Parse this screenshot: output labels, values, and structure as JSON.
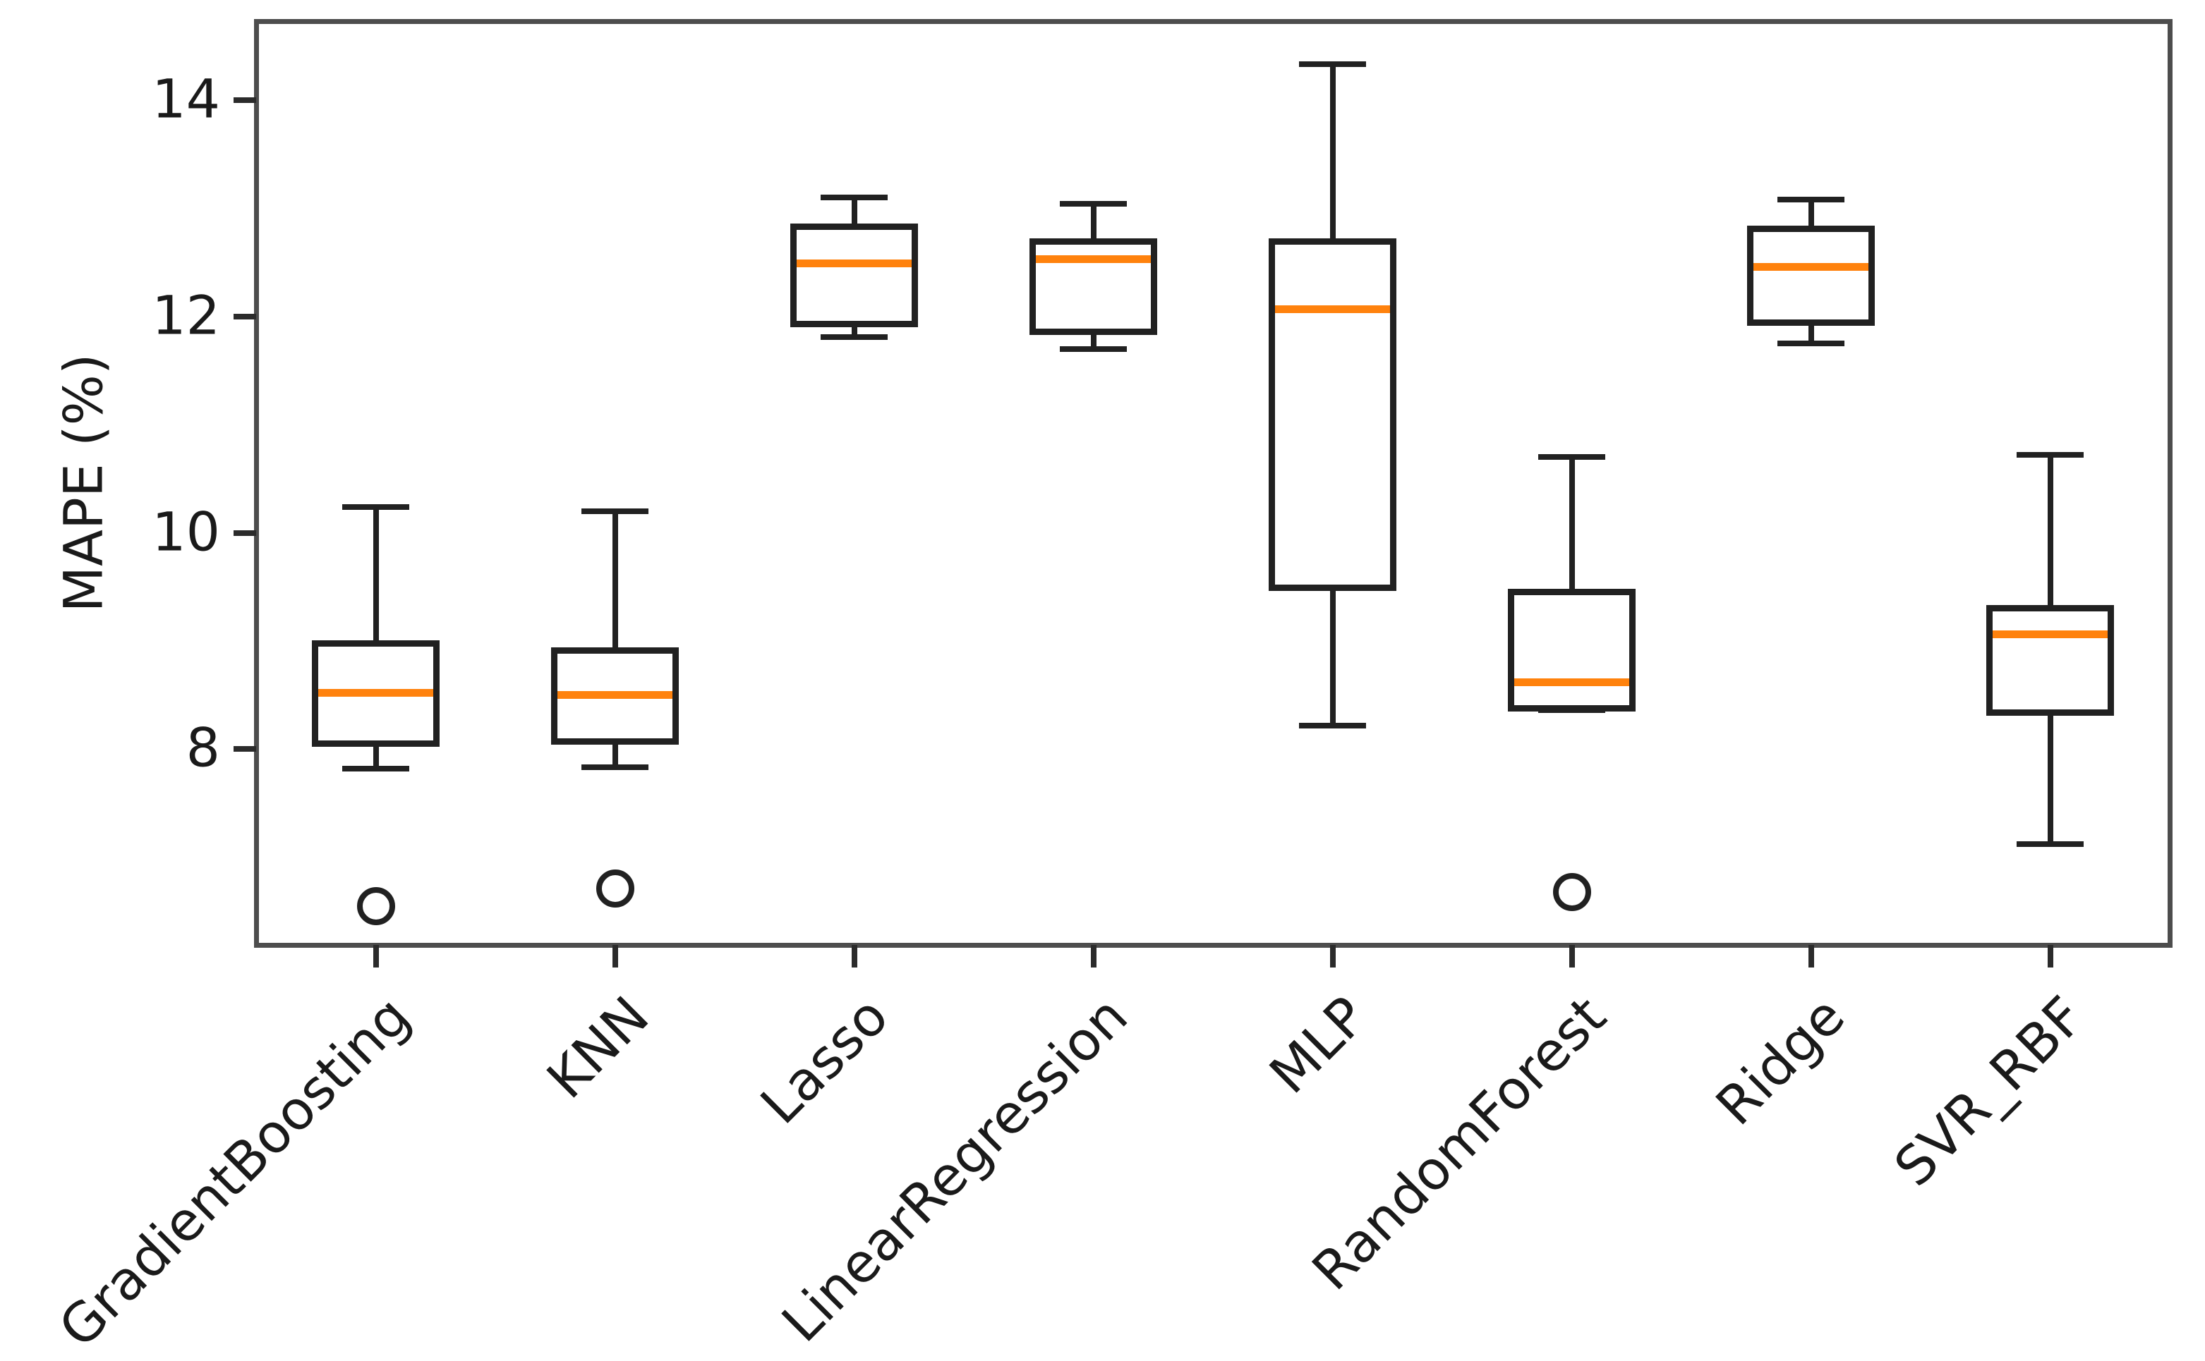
{
  "chart_data": {
    "type": "boxplot",
    "title": "",
    "xlabel": "",
    "ylabel": "MAPE (%)",
    "categories": [
      "GradientBoosting",
      "KNN",
      "Lasso",
      "LinearRegression",
      "MLP",
      "RandomForest",
      "Ridge",
      "SVR_RBF"
    ],
    "series": [
      {
        "name": "GradientBoosting",
        "whisker_low": 7.82,
        "q1": 8.05,
        "median": 8.52,
        "q3": 8.98,
        "whisker_high": 10.24,
        "outliers": [
          6.55
        ]
      },
      {
        "name": "KNN",
        "whisker_low": 7.83,
        "q1": 8.07,
        "median": 8.5,
        "q3": 8.91,
        "whisker_high": 10.2,
        "outliers": [
          6.71
        ]
      },
      {
        "name": "Lasso",
        "whisker_low": 11.81,
        "q1": 11.93,
        "median": 12.49,
        "q3": 12.83,
        "whisker_high": 13.1,
        "outliers": []
      },
      {
        "name": "LinearRegression",
        "whisker_low": 11.7,
        "q1": 11.86,
        "median": 12.53,
        "q3": 12.69,
        "whisker_high": 13.04,
        "outliers": []
      },
      {
        "name": "MLP",
        "whisker_low": 8.22,
        "q1": 9.49,
        "median": 12.07,
        "q3": 12.69,
        "whisker_high": 14.33,
        "outliers": []
      },
      {
        "name": "RandomForest",
        "whisker_low": 8.36,
        "q1": 8.38,
        "median": 8.62,
        "q3": 9.45,
        "whisker_high": 10.7,
        "outliers": [
          6.68
        ]
      },
      {
        "name": "Ridge",
        "whisker_low": 11.75,
        "q1": 11.94,
        "median": 12.46,
        "q3": 12.81,
        "whisker_high": 13.08,
        "outliers": []
      },
      {
        "name": "SVR_RBF",
        "whisker_low": 7.12,
        "q1": 8.34,
        "median": 9.06,
        "q3": 9.3,
        "whisker_high": 10.72,
        "outliers": []
      }
    ],
    "yticks": [
      8,
      10,
      12,
      14
    ],
    "ylim": [
      6.19,
      14.73
    ],
    "grid": false,
    "legend": null,
    "colors": {
      "median": "#ff820d",
      "box_edge": "#212121",
      "whisker": "#212121",
      "outlier_edge": "#212121",
      "spine": "#4d4d4d",
      "tick": "#2b2b2b",
      "text": "#1a1a1a",
      "background": "#ffffff"
    }
  }
}
